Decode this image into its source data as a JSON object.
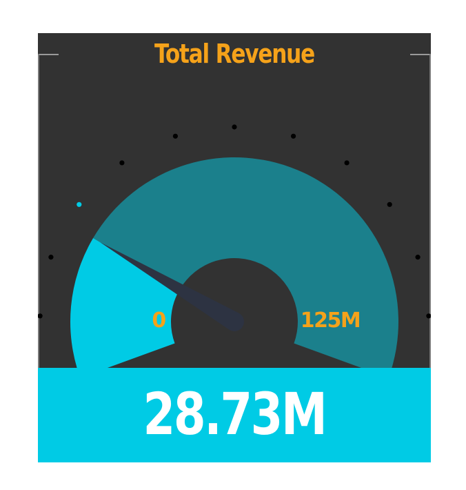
{
  "chart_data": {
    "type": "gauge",
    "title": "Total Revenue",
    "value": 28.73,
    "value_label": "28.73M",
    "min": 0,
    "max": 125,
    "min_label": "0",
    "max_label": "125M",
    "unit": "M",
    "tick_count": 13
  },
  "colors": {
    "card_background": "#323232",
    "title": "#f5a21a",
    "axis_labels": "#f5a21a",
    "value_fill": "#00cbe5",
    "track_fill": "#1b808c",
    "needle": "#2d3342",
    "ticks": "#000000",
    "active_tick": "#00cbe5",
    "value_panel": "#00cbe5",
    "value_text": "#ffffff"
  }
}
